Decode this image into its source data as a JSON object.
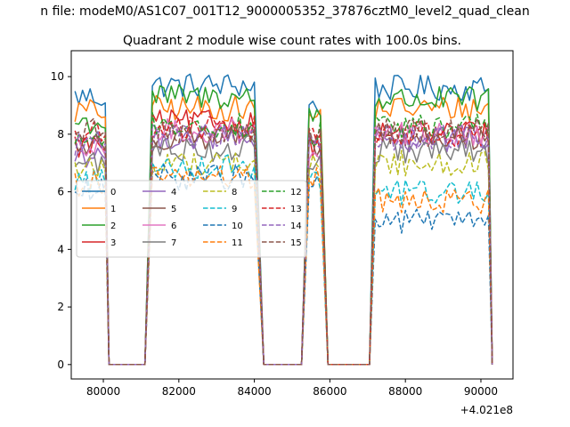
{
  "suptitle": "n file: modeM0/AS1C07_001T12_9000005352_37876cztM0_level2_quad_clean",
  "chart_data": {
    "type": "line",
    "title": "Quadrant 2 module wise count rates with 100.0s bins.",
    "xlabel": "",
    "ylabel": "",
    "x_offset_label": "+4.021e8",
    "xlim": [
      79150,
      90850
    ],
    "ylim": [
      -0.5,
      10.9
    ],
    "x_ticks": [
      80000,
      82000,
      84000,
      86000,
      88000,
      90000
    ],
    "x_tick_labels": [
      "80000",
      "82000",
      "84000",
      "86000",
      "88000",
      "90000"
    ],
    "y_ticks": [
      0,
      2,
      4,
      6,
      8,
      10
    ],
    "y_tick_labels": [
      "0",
      "2",
      "4",
      "6",
      "8",
      "10"
    ],
    "grid": false,
    "legend": "center-left, 4 columns",
    "segments": [
      {
        "x_start": 79250,
        "x_end": 80050,
        "ramp_down_end": 80150
      },
      {
        "x_start": 81300,
        "x_end": 84050,
        "ramp_up_start": 81100,
        "ramp_down_end": 84250
      },
      {
        "x_start": 85450,
        "x_end": 85800,
        "ramp_up_start": 85250,
        "ramp_down_end": 85950
      },
      {
        "x_start": 87200,
        "x_end": 90250,
        "ramp_up_start": 87050,
        "ramp_down_end": 90300
      }
    ],
    "gap_value": 0,
    "series": [
      {
        "name": "0",
        "color": "#1f77b4",
        "dash": "solid",
        "levels": [
          9.3,
          9.7,
          9.0,
          9.6
        ]
      },
      {
        "name": "1",
        "color": "#ff7f0e",
        "dash": "solid",
        "levels": [
          8.8,
          8.9,
          8.6,
          8.9
        ]
      },
      {
        "name": "2",
        "color": "#2ca02c",
        "dash": "solid",
        "levels": [
          8.4,
          9.3,
          8.7,
          9.2
        ]
      },
      {
        "name": "3",
        "color": "#d62728",
        "dash": "solid",
        "levels": [
          7.6,
          8.4,
          7.7,
          8.0
        ]
      },
      {
        "name": "4",
        "color": "#9467bd",
        "dash": "solid",
        "levels": [
          7.3,
          7.9,
          7.4,
          7.8
        ]
      },
      {
        "name": "5",
        "color": "#8c564b",
        "dash": "solid",
        "levels": [
          7.6,
          7.9,
          7.6,
          7.9
        ]
      },
      {
        "name": "6",
        "color": "#e377c2",
        "dash": "solid",
        "levels": [
          7.4,
          8.1,
          7.5,
          8.0
        ]
      },
      {
        "name": "7",
        "color": "#7f7f7f",
        "dash": "solid",
        "levels": [
          7.0,
          7.5,
          7.1,
          7.4
        ]
      },
      {
        "name": "8",
        "color": "#bcbd22",
        "dash": "dashed",
        "levels": [
          6.8,
          7.0,
          6.9,
          7.0
        ]
      },
      {
        "name": "9",
        "color": "#17becf",
        "dash": "dashed",
        "levels": [
          6.4,
          6.9,
          6.5,
          6.0
        ]
      },
      {
        "name": "10",
        "color": "#1f77b4",
        "dash": "dashed",
        "levels": [
          6.0,
          6.5,
          6.2,
          5.0
        ]
      },
      {
        "name": "11",
        "color": "#ff7f0e",
        "dash": "dashed",
        "levels": [
          6.3,
          6.5,
          6.4,
          5.7
        ]
      },
      {
        "name": "12",
        "color": "#2ca02c",
        "dash": "dashed",
        "levels": [
          7.9,
          8.3,
          8.0,
          8.3
        ]
      },
      {
        "name": "13",
        "color": "#d62728",
        "dash": "dashed",
        "levels": [
          8.0,
          8.2,
          7.9,
          8.0
        ]
      },
      {
        "name": "14",
        "color": "#9467bd",
        "dash": "dashed",
        "levels": [
          7.7,
          7.9,
          7.7,
          7.9
        ]
      },
      {
        "name": "15",
        "color": "#8c564b",
        "dash": "dashed",
        "levels": [
          8.1,
          8.0,
          7.8,
          8.1
        ]
      }
    ]
  }
}
